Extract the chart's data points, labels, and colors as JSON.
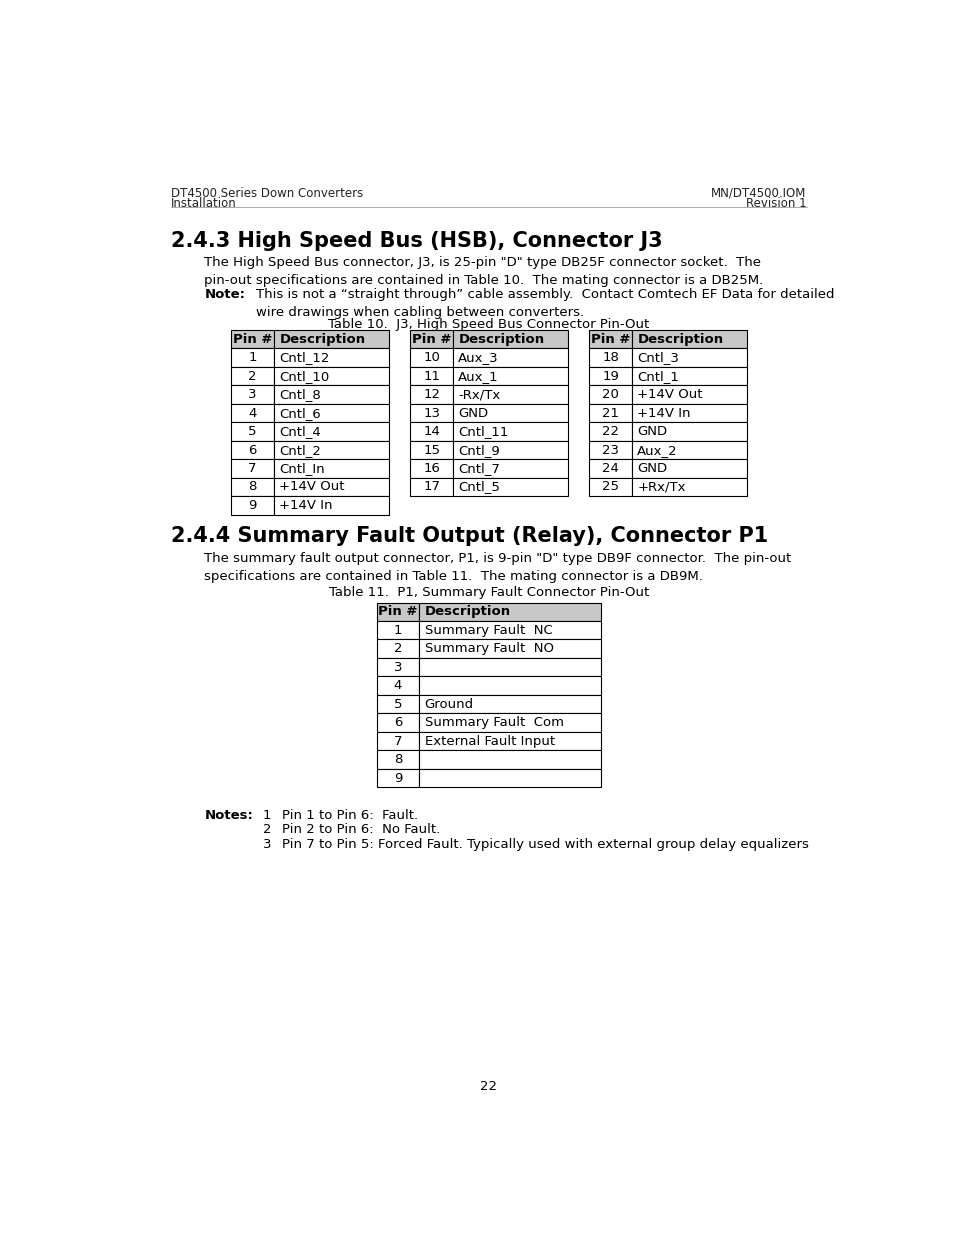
{
  "bg_color": "#ffffff",
  "header_left_line1": "DT4500 Series Down Converters",
  "header_left_line2": "Installation",
  "header_right_line1": "MN/DT4500.IOM",
  "header_right_line2": "Revision 1",
  "section1_body": "The High Speed Bus connector, J3, is 25-pin \"D\" type DB25F connector socket.  The\npin-out specifications are contained in Table 10.  The mating connector is a DB25M.",
  "note_label": "Note:",
  "note_text": "This is not a “straight through” cable assembly.  Contact Comtech EF Data for detailed\nwire drawings when cabling between converters.",
  "table1_caption": "Table 10.  J3, High Speed Bus Connector Pin-Out",
  "table1_col1": [
    [
      "1",
      "Cntl_12"
    ],
    [
      "2",
      "Cntl_10"
    ],
    [
      "3",
      "Cntl_8"
    ],
    [
      "4",
      "Cntl_6"
    ],
    [
      "5",
      "Cntl_4"
    ],
    [
      "6",
      "Cntl_2"
    ],
    [
      "7",
      "Cntl_In"
    ],
    [
      "8",
      "+14V Out"
    ],
    [
      "9",
      "+14V In"
    ]
  ],
  "table1_col2": [
    [
      "10",
      "Aux_3"
    ],
    [
      "11",
      "Aux_1"
    ],
    [
      "12",
      "-Rx/Tx"
    ],
    [
      "13",
      "GND"
    ],
    [
      "14",
      "Cntl_11"
    ],
    [
      "15",
      "Cntl_9"
    ],
    [
      "16",
      "Cntl_7"
    ],
    [
      "17",
      "Cntl_5"
    ]
  ],
  "table1_col3": [
    [
      "18",
      "Cntl_3"
    ],
    [
      "19",
      "Cntl_1"
    ],
    [
      "20",
      "+14V Out"
    ],
    [
      "21",
      "+14V In"
    ],
    [
      "22",
      "GND"
    ],
    [
      "23",
      "Aux_2"
    ],
    [
      "24",
      "GND"
    ],
    [
      "25",
      "+Rx/Tx"
    ]
  ],
  "section2_body": "The summary fault output connector, P1, is 9-pin \"D\" type DB9F connector.  The pin-out\nspecifications are contained in Table 11.  The mating connector is a DB9M.",
  "table2_caption": "Table 11.  P1, Summary Fault Connector Pin-Out",
  "table2_rows": [
    [
      "1",
      "Summary Fault  NC"
    ],
    [
      "2",
      "Summary Fault  NO"
    ],
    [
      "3",
      ""
    ],
    [
      "4",
      ""
    ],
    [
      "5",
      "Ground"
    ],
    [
      "6",
      "Summary Fault  Com"
    ],
    [
      "7",
      "External Fault Input"
    ],
    [
      "8",
      ""
    ],
    [
      "9",
      ""
    ]
  ],
  "notes_label": "Notes:",
  "notes": [
    [
      "1",
      "Pin 1 to Pin 6:  Fault."
    ],
    [
      "2",
      "Pin 2 to Pin 6:  No Fault."
    ],
    [
      "3",
      "Pin 7 to Pin 5: Forced Fault. Typically used with external group delay equalizers"
    ]
  ],
  "page_number": "22",
  "header_bg": "#c8c8c8"
}
